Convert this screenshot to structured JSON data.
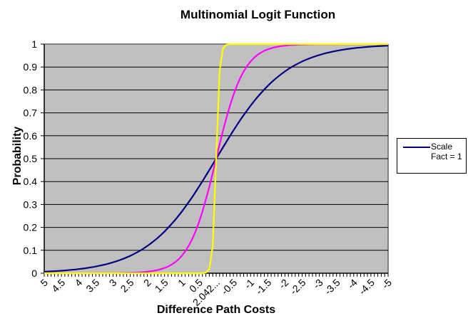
{
  "chart_data": {
    "type": "line",
    "title": "Multinomial Logit Function",
    "xlabel": "Difference Path Costs",
    "ylabel": "Probability",
    "ylim": [
      0,
      1
    ],
    "yticks": [
      "0",
      "0.1",
      "0.2",
      "0.3",
      "0.4",
      "0.5",
      "0.6",
      "0.7",
      "0.8",
      "0.9",
      "1"
    ],
    "xticks": [
      "5",
      "4.5",
      "4",
      "3.5",
      "3",
      "2.5",
      "2",
      "1.5",
      "1",
      "0.5",
      "2.042...",
      "-0.5",
      "-1",
      "-1.5",
      "-2",
      "-2.5",
      "-3",
      "-3.5",
      "-4",
      "-4.5",
      "-5"
    ],
    "x_range": [
      5,
      -5
    ],
    "x_step": 0.1,
    "grid": "horizontal",
    "plot_background": "#C0C0C0",
    "legend_position": "right",
    "legend": [
      "Scale Fact = 1"
    ],
    "series": [
      {
        "name": "Scale Fact = 1",
        "color": "#000080",
        "scale": 1,
        "x": [
          5,
          4,
          3,
          2,
          1,
          0.5,
          0,
          -0.5,
          -1,
          -2,
          -3,
          -4,
          -5
        ],
        "values": [
          0.007,
          0.018,
          0.047,
          0.119,
          0.269,
          0.378,
          0.5,
          0.622,
          0.731,
          0.881,
          0.953,
          0.982,
          0.993
        ]
      },
      {
        "name": "",
        "color": "#FF00FF",
        "scale": 2.5,
        "x": [
          5,
          3,
          2,
          1.5,
          1,
          0.5,
          0,
          -0.5,
          -1,
          -1.5,
          -2,
          -3,
          -5
        ],
        "values": [
          0.0,
          0.001,
          0.007,
          0.023,
          0.076,
          0.223,
          0.5,
          0.777,
          0.924,
          0.977,
          0.993,
          0.999,
          1.0
        ]
      },
      {
        "name": "",
        "color": "#FFFF00",
        "scale": 20,
        "x": [
          5,
          0.3,
          0.2,
          0.1,
          0,
          -0.1,
          -0.2,
          -0.3,
          -5
        ],
        "values": [
          0.0,
          0.002,
          0.018,
          0.119,
          0.5,
          0.881,
          0.982,
          0.998,
          1.0
        ]
      }
    ]
  },
  "legend_label_line1": "Scale",
  "legend_label_line2": "Fact = 1"
}
